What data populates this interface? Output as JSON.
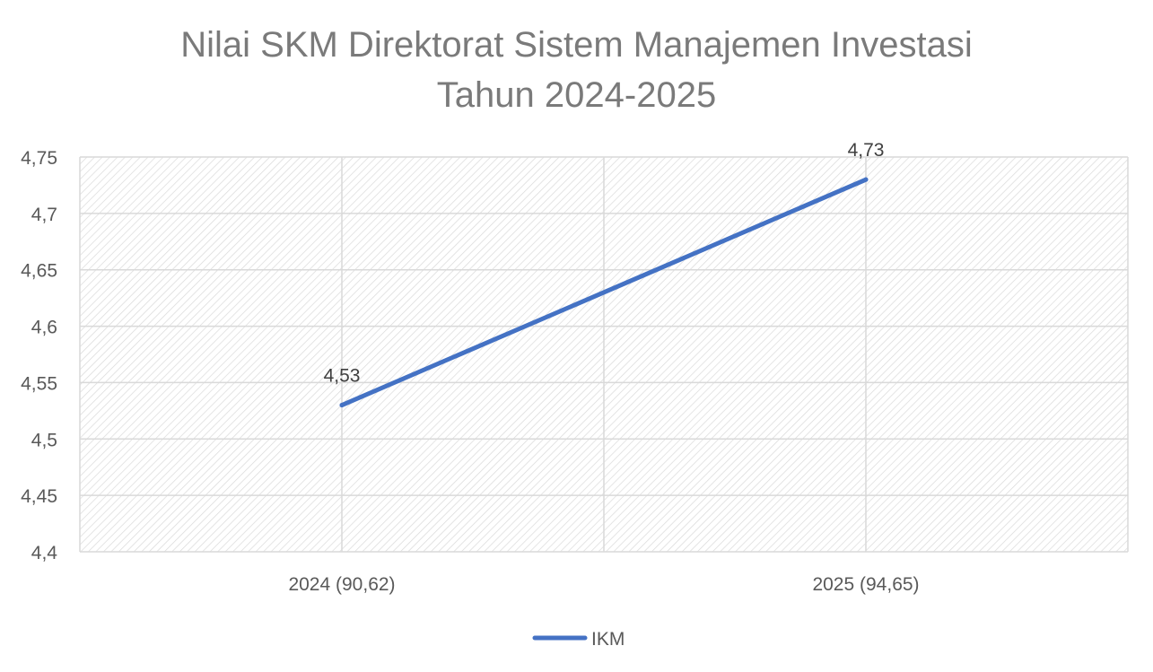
{
  "chart_data": {
    "type": "line",
    "title_lines": [
      "Nilai SKM Direktorat Sistem Manajemen Investasi",
      "Tahun 2024-2025"
    ],
    "categories": [
      "2024 (90,62)",
      "2025 (94,65)"
    ],
    "series": [
      {
        "name": "IKM",
        "values": [
          4.53,
          4.73
        ],
        "data_labels": [
          "4,53",
          "4,73"
        ],
        "color": "#4472c4"
      }
    ],
    "ylim": [
      4.4,
      4.75
    ],
    "yticks": [
      4.4,
      4.45,
      4.5,
      4.55,
      4.6,
      4.65,
      4.7,
      4.75
    ],
    "ytick_labels": [
      "4,4",
      "4,45",
      "4,5",
      "4,55",
      "4,6",
      "4,65",
      "4,7",
      "4,75"
    ],
    "grid": true,
    "legend_position": "bottom"
  }
}
